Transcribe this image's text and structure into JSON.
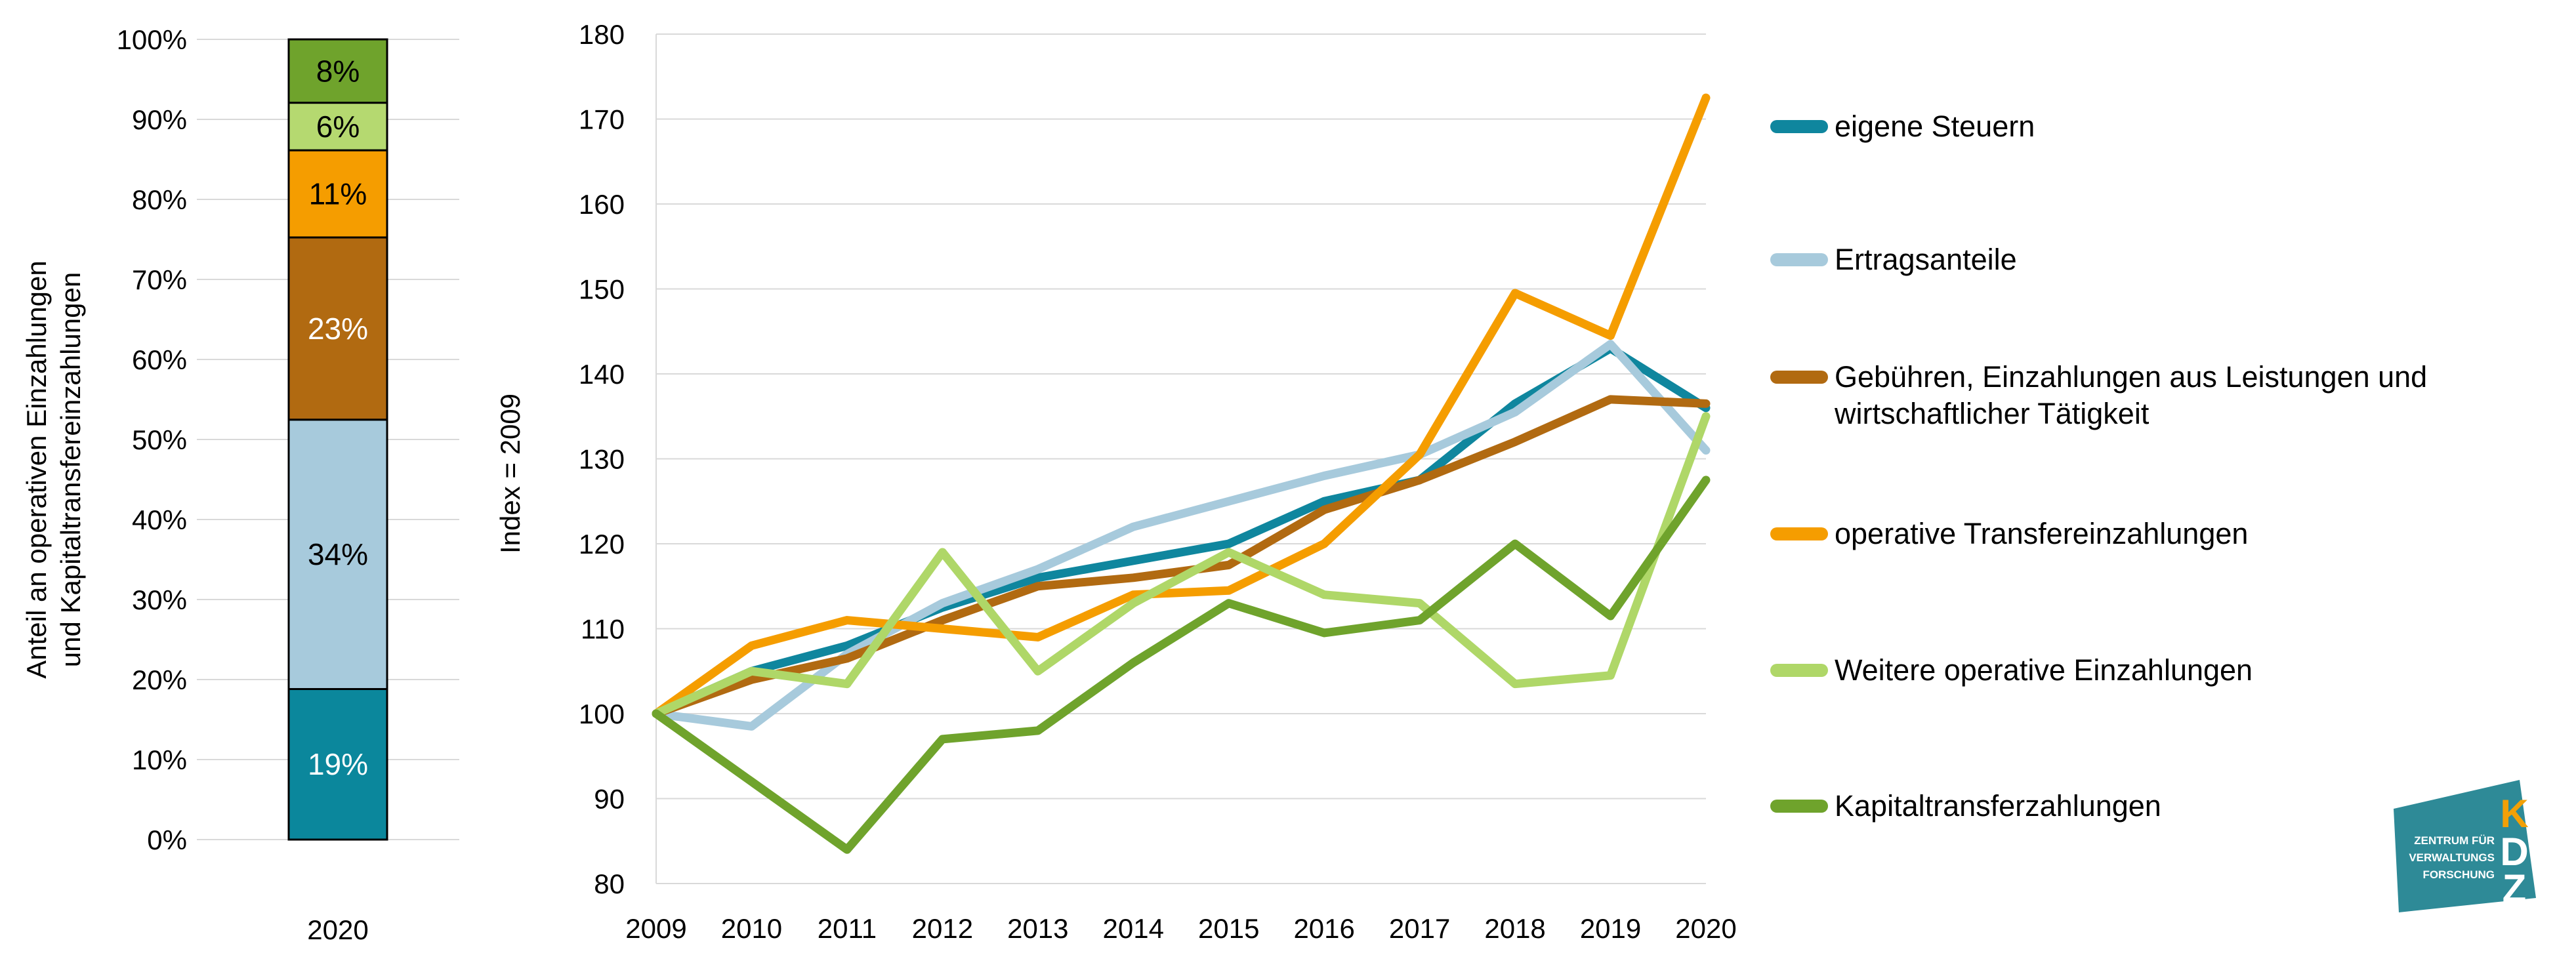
{
  "chart_data": [
    {
      "type": "bar",
      "stacked": true,
      "title": "",
      "categories": [
        "2020"
      ],
      "ylabel": "Anteil an operativen Einzahlungen\nund Kapitaltransfereinzahlungen",
      "ylim": [
        0,
        100
      ],
      "grid": true,
      "y_ticks": [
        "0%",
        "10%",
        "20%",
        "30%",
        "40%",
        "50%",
        "60%",
        "70%",
        "80%",
        "90%",
        "100%"
      ],
      "segments_bottom_to_top": [
        {
          "name": "eigene Steuern",
          "value": 19,
          "label": "19%",
          "color": "#0B879C",
          "label_color": "#FFFFFF"
        },
        {
          "name": "Ertragsanteile",
          "value": 34,
          "label": "34%",
          "color": "#A7CADC",
          "label_color": "#000000"
        },
        {
          "name": "Gebühren, Einzahlungen aus Leistungen und wirtschaftlicher Tätigkeit",
          "value": 23,
          "label": "23%",
          "color": "#B16A11",
          "label_color": "#FFFFFF"
        },
        {
          "name": "operative Transfereinzahlungen",
          "value": 11,
          "label": "11%",
          "color": "#F59D00",
          "label_color": "#000000"
        },
        {
          "name": "Weitere operative Einzahlungen",
          "value": 6,
          "label": "6%",
          "color": "#B5D970",
          "label_color": "#000000"
        },
        {
          "name": "Kapitaltransferzahlungen",
          "value": 8,
          "label": "8%",
          "color": "#6FA32C",
          "label_color": "#000000"
        }
      ]
    },
    {
      "type": "line",
      "title": "",
      "ylabel": "Index = 2009",
      "ylim": [
        80,
        180
      ],
      "y_step": 10,
      "grid": true,
      "legend_position": "right",
      "x": [
        "2009",
        "2010",
        "2011",
        "2012",
        "2013",
        "2014",
        "2015",
        "2016",
        "2017",
        "2018",
        "2019",
        "2020"
      ],
      "series": [
        {
          "name": "eigene Steuern",
          "color": "#0F869E",
          "values": [
            100,
            105,
            108,
            112.5,
            116,
            118,
            120,
            125,
            127.5,
            136.5,
            143,
            136
          ]
        },
        {
          "name": "Ertragsanteile",
          "color": "#A7CADC",
          "values": [
            100,
            98.5,
            107,
            113,
            117,
            122,
            125,
            128,
            130.5,
            135.5,
            143.5,
            131
          ]
        },
        {
          "name": "Gebühren, Einzahlungen aus Leistungen und wirtschaftlicher Tätigkeit",
          "color": "#B16A11",
          "values": [
            100,
            104,
            106.5,
            111,
            115,
            116,
            117.5,
            124,
            127.5,
            132,
            137,
            136.5
          ]
        },
        {
          "name": "operative Transfereinzahlungen",
          "color": "#F59D00",
          "values": [
            100,
            108,
            111,
            110,
            109,
            114,
            114.5,
            120,
            130.5,
            149.5,
            144.5,
            172.5
          ]
        },
        {
          "name": "Weitere operative Einzahlungen",
          "color": "#AFD768",
          "values": [
            100,
            105,
            103.5,
            119,
            105,
            113,
            119,
            114,
            113,
            103.5,
            104.5,
            135
          ]
        },
        {
          "name": "Kapitaltransferzahlungen",
          "color": "#6FA32C",
          "values": [
            100,
            92,
            84,
            97,
            98,
            106,
            113,
            109.5,
            111,
            120,
            111.5,
            127.5
          ]
        }
      ]
    }
  ],
  "bar_axis": {
    "x_label": "2020",
    "y_title": "Anteil an operativen Einzahlungen\nund Kapitaltransfereinzahlungen"
  },
  "line_axis": {
    "y_title": "Index = 2009"
  },
  "legend": {
    "items": [
      {
        "label": "eigene Steuern",
        "color": "#0F869E"
      },
      {
        "label": "Ertragsanteile",
        "color": "#A7CADC"
      },
      {
        "label": "Gebühren, Einzahlungen aus Leistungen und\nwirtschaftlicher Tätigkeit",
        "color": "#B16A11"
      },
      {
        "label": "operative Transfereinzahlungen",
        "color": "#F59D00"
      },
      {
        "label": "Weitere operative Einzahlungen",
        "color": "#AFD768"
      },
      {
        "label": "Kapitaltransferzahlungen",
        "color": "#6FA32C"
      }
    ]
  },
  "logo": {
    "letters": [
      "K",
      "D",
      "Z"
    ],
    "text_lines": [
      "ZENTRUM FÜR",
      "VERWALTUNGS",
      "FORSCHUNG"
    ],
    "bg_color": "#2E8A97",
    "k_color": "#F2A007",
    "text_color": "#FFFFFF"
  },
  "style": {
    "gridline_color": "#D9D9D9",
    "axis_text_color": "#000000"
  }
}
